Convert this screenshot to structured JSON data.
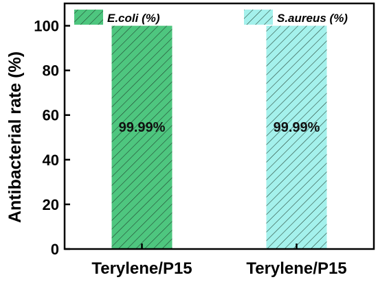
{
  "chart_data": {
    "type": "bar",
    "categories": [
      "Terylene/P15",
      "Terylene/P15"
    ],
    "series": [
      {
        "name": "E.coli (%)",
        "color": "#4ec67f",
        "values": [
          99.99,
          null
        ]
      },
      {
        "name": "S.aureus (%)",
        "color": "#a4f1ec",
        "values": [
          null,
          99.99
        ]
      }
    ],
    "data_labels": [
      "99.99%",
      "99.99%"
    ],
    "ylabel": "Antibacterial rate (%)",
    "xlabel": "",
    "ylim": [
      0,
      110
    ],
    "yticks": [
      0,
      20,
      40,
      60,
      80,
      100
    ],
    "legend_position": "top",
    "bar_pattern": "diagonal-hatch",
    "grid": false
  }
}
